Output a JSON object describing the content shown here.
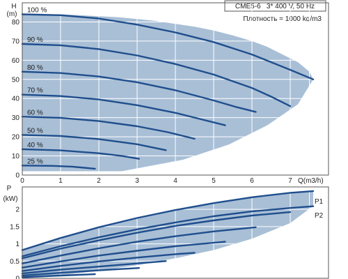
{
  "chart_data": [
    {
      "type": "line",
      "title": "CME5-6   3* 400 V, 50 Hz",
      "subtitle": "Плотность = 1000 kg/m3",
      "ylabel": "H",
      "yunit": "(m)",
      "xlabel": "Q(m3/h)",
      "xlim": [
        0,
        8
      ],
      "ylim": [
        0,
        90
      ],
      "xticks": [
        0,
        1,
        2,
        3,
        4,
        5,
        6,
        7
      ],
      "yticks": [
        0,
        10,
        20,
        30,
        40,
        50,
        60,
        70,
        80
      ],
      "grid": true,
      "colors": {
        "curve": "#1f4e8c",
        "band": "#a9bfd6",
        "grid": "#ffffff",
        "frame": "#555555"
      },
      "operating_envelope": {
        "x": [
          0,
          2.6,
          4.2,
          5.4,
          6.4,
          7.2,
          7.6,
          7.5,
          7.2,
          6.8,
          6.4,
          6.0,
          5.5,
          5.0,
          4.5,
          4.0,
          3.5,
          3.0,
          2.5,
          2.0,
          1.5,
          1.0,
          0.5,
          0
        ],
        "y": [
          2,
          2,
          8,
          16,
          26,
          37,
          50,
          54,
          59,
          63,
          67,
          70,
          73,
          75.5,
          77.5,
          79,
          80.5,
          81.5,
          82.5,
          83,
          83.5,
          84,
          84,
          84
        ]
      },
      "series": [
        {
          "name": "100 %",
          "x": [
            0,
            1,
            2,
            3,
            4,
            5,
            6,
            6.5,
            7,
            7.6
          ],
          "y": [
            84,
            83.5,
            81.8,
            78.6,
            74.5,
            69.5,
            63,
            59,
            55,
            50
          ]
        },
        {
          "name": "90 %",
          "x": [
            0,
            1,
            2,
            3,
            4,
            5,
            6,
            6.5,
            7.0
          ],
          "y": [
            68.5,
            67.8,
            65.8,
            62.5,
            58,
            52.5,
            45.5,
            41,
            36
          ]
        },
        {
          "name": "80 %",
          "x": [
            0,
            1,
            2,
            3,
            4,
            5,
            5.6,
            6.1
          ],
          "y": [
            54,
            53.3,
            51.5,
            48.5,
            44.3,
            39,
            35.5,
            33
          ]
        },
        {
          "name": "70 %",
          "x": [
            0,
            1,
            2,
            3,
            4,
            4.6,
            5.3
          ],
          "y": [
            42,
            41.3,
            39.5,
            36.5,
            32.5,
            29.5,
            26
          ]
        },
        {
          "name": "60 %",
          "x": [
            0,
            1,
            2,
            3,
            3.8,
            4.5
          ],
          "y": [
            30.5,
            29.9,
            28.2,
            25.5,
            22.4,
            19
          ]
        },
        {
          "name": "50 %",
          "x": [
            0,
            1,
            2,
            3,
            3.75
          ],
          "y": [
            21,
            20.4,
            18.8,
            16.1,
            13
          ]
        },
        {
          "name": "40 %",
          "x": [
            0,
            1,
            2,
            2.6,
            3.05
          ],
          "y": [
            13.5,
            12.9,
            11.4,
            10,
            8.5
          ]
        },
        {
          "name": "25 %",
          "x": [
            0,
            0.8,
            1.3,
            1.9
          ],
          "y": [
            5,
            4.8,
            4.4,
            3.3
          ]
        }
      ]
    },
    {
      "type": "line",
      "ylabel": "P",
      "yunit": "(kW)",
      "xlim": [
        0,
        8
      ],
      "ylim": [
        0,
        2.65
      ],
      "yticks": [
        0,
        0.5,
        1,
        1.5,
        2
      ],
      "ytick_labels": [
        "0",
        "0.5",
        "1",
        "1.5",
        "2"
      ],
      "grid": true,
      "legend_labels": [
        "P1",
        "P2"
      ],
      "operating_envelope": {
        "x": [
          0,
          1,
          2,
          3,
          4,
          5,
          6,
          7,
          7.6,
          7.6,
          7.0,
          6.0,
          5.0,
          4.0,
          3.0,
          2.0,
          1.0,
          0.3,
          0
        ],
        "y": [
          0.82,
          1.17,
          1.48,
          1.75,
          1.98,
          2.18,
          2.35,
          2.48,
          2.53,
          2.1,
          1.6,
          1.15,
          0.82,
          0.58,
          0.38,
          0.22,
          0.08,
          0.03,
          0.03
        ]
      },
      "series": [
        {
          "name": "P1",
          "x": [
            0,
            1,
            2,
            3,
            4,
            5,
            6,
            7,
            7.6
          ],
          "y": [
            0.82,
            1.17,
            1.48,
            1.75,
            1.98,
            2.18,
            2.35,
            2.48,
            2.53
          ]
        },
        {
          "name": "P2",
          "x": [
            0,
            1,
            2,
            3,
            4,
            5,
            6,
            7,
            7.6
          ],
          "y": [
            0.64,
            0.93,
            1.19,
            1.42,
            1.62,
            1.8,
            1.94,
            2.04,
            2.09
          ]
        },
        {
          "x": [
            0,
            1,
            2,
            3,
            4,
            5,
            6,
            7.0
          ],
          "y": [
            0.58,
            0.86,
            1.1,
            1.32,
            1.52,
            1.68,
            1.82,
            1.92
          ]
        },
        {
          "x": [
            0,
            1,
            2,
            3,
            4,
            5,
            6.1
          ],
          "y": [
            0.43,
            0.66,
            0.87,
            1.06,
            1.22,
            1.36,
            1.48
          ]
        },
        {
          "x": [
            0,
            1,
            2,
            3,
            4,
            5.3
          ],
          "y": [
            0.31,
            0.49,
            0.66,
            0.8,
            0.93,
            1.06
          ]
        },
        {
          "x": [
            0,
            1,
            2,
            3,
            4,
            4.5
          ],
          "y": [
            0.21,
            0.36,
            0.49,
            0.6,
            0.7,
            0.74
          ]
        },
        {
          "x": [
            0,
            1,
            2,
            3,
            3.75
          ],
          "y": [
            0.14,
            0.25,
            0.34,
            0.43,
            0.5
          ]
        },
        {
          "x": [
            0,
            1,
            2,
            3.05
          ],
          "y": [
            0.08,
            0.16,
            0.23,
            0.3
          ]
        },
        {
          "x": [
            0,
            0.8,
            1.9
          ],
          "y": [
            0.03,
            0.07,
            0.12
          ]
        }
      ]
    }
  ]
}
